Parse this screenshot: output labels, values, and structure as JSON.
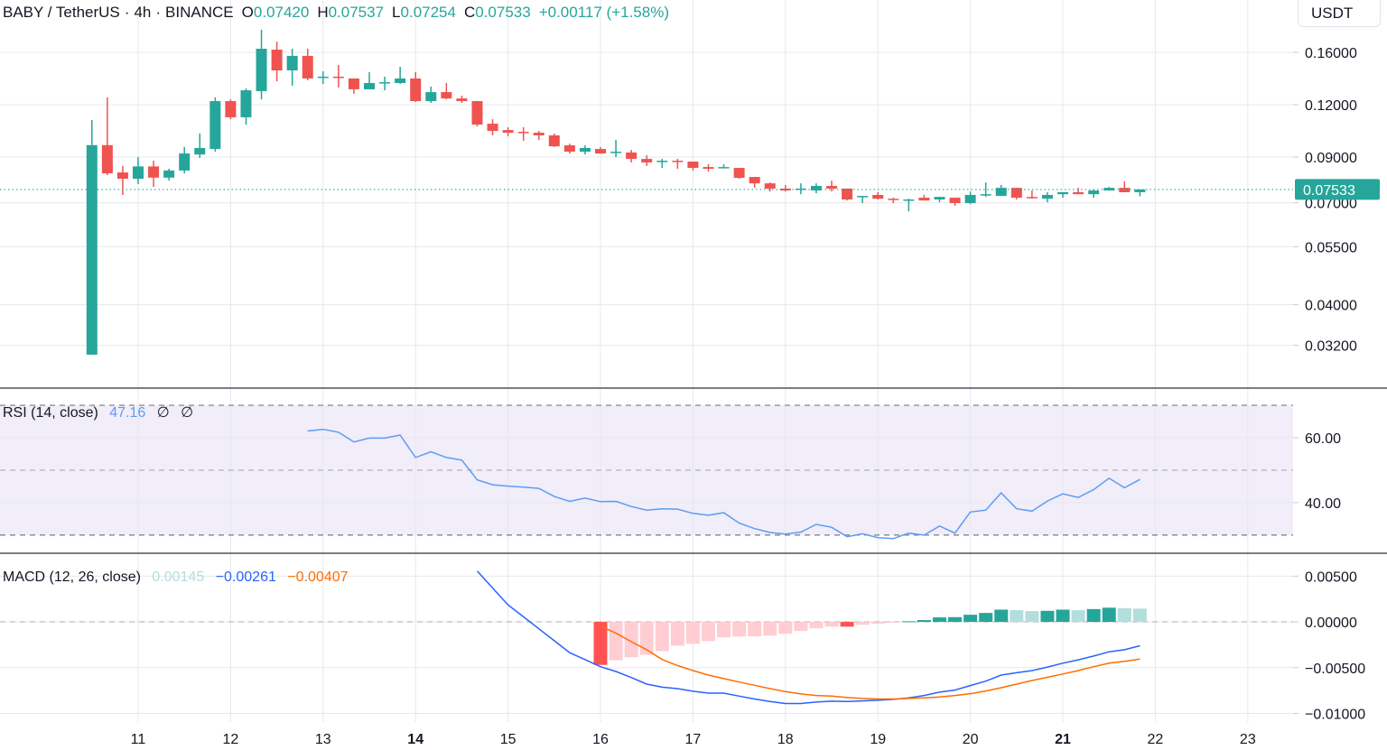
{
  "header": {
    "symbol": "BABY / TetherUS",
    "dot1": "·",
    "interval": "4h",
    "dot2": "·",
    "exchange": "BINANCE",
    "o_label": "O",
    "o": "0.07420",
    "h_label": "H",
    "h": "0.07537",
    "l_label": "L",
    "l": "0.07254",
    "c_label": "C",
    "c": "0.07533",
    "change": "+0.00117 (+1.58%)"
  },
  "currency_button": "USDT",
  "colors": {
    "up": "#26a69a",
    "down": "#ef5350",
    "rsi_line": "#5e9cf2",
    "rsi_band": "#f1edf9",
    "macd_line": "#2962ff",
    "signal_line": "#ff6d00",
    "hist_up_strong": "#26a69a",
    "hist_up_weak": "#b2dfdb",
    "hist_down_strong": "#ff5252",
    "hist_down_weak": "#ffcdd2"
  },
  "time_axis": {
    "ticks": [
      "11",
      "12",
      "13",
      "14",
      "15",
      "16",
      "17",
      "18",
      "19",
      "20",
      "21",
      "22",
      "23"
    ],
    "bold": [
      "14",
      "21"
    ],
    "xlim_days": [
      9.506,
      23.49
    ]
  },
  "chart_data": [
    {
      "type": "candlestick",
      "interval": "4h",
      "first_candle_day": 10.5,
      "y_scale": "log",
      "ylim": [
        0.0253,
        0.2133
      ],
      "y_ticks": [
        "0.16000",
        "0.12000",
        "0.09000",
        "0.07000",
        "0.05500",
        "0.04000",
        "0.03200"
      ],
      "last_price_label": "0.07533",
      "ohlc": [
        [
          0.0304,
          0.1103,
          0.0304,
          0.0961
        ],
        [
          0.0961,
          0.1249,
          0.0815,
          0.0823
        ],
        [
          0.0827,
          0.0857,
          0.0731,
          0.0799
        ],
        [
          0.0799,
          0.09,
          0.0776,
          0.0855
        ],
        [
          0.0855,
          0.0882,
          0.0764,
          0.0804
        ],
        [
          0.0804,
          0.0844,
          0.0791,
          0.0836
        ],
        [
          0.0836,
          0.0951,
          0.0823,
          0.0918
        ],
        [
          0.0913,
          0.1024,
          0.0896,
          0.0946
        ],
        [
          0.0941,
          0.1249,
          0.0927,
          0.1224
        ],
        [
          0.1224,
          0.1236,
          0.1108,
          0.112
        ],
        [
          0.112,
          0.1312,
          0.1076,
          0.1299
        ],
        [
          0.1293,
          0.1811,
          0.1236,
          0.1632
        ],
        [
          0.1624,
          0.1698,
          0.1365,
          0.1449
        ],
        [
          0.1449,
          0.1632,
          0.1332,
          0.1569
        ],
        [
          0.1569,
          0.1632,
          0.1372,
          0.1386
        ],
        [
          0.1393,
          0.1442,
          0.1345,
          0.14
        ],
        [
          0.14,
          0.1493,
          0.1319,
          0.1393
        ],
        [
          0.1386,
          0.1386,
          0.1274,
          0.1306
        ],
        [
          0.1306,
          0.1435,
          0.1306,
          0.1352
        ],
        [
          0.1358,
          0.14,
          0.1299,
          0.1358
        ],
        [
          0.1352,
          0.1478,
          0.1345,
          0.1386
        ],
        [
          0.1386,
          0.1435,
          0.1218,
          0.1224
        ],
        [
          0.1224,
          0.1325,
          0.1212,
          0.1286
        ],
        [
          0.1286,
          0.1352,
          0.1236,
          0.1242
        ],
        [
          0.1242,
          0.1261,
          0.1212,
          0.1224
        ],
        [
          0.1224,
          0.1224,
          0.1065,
          0.1076
        ],
        [
          0.1081,
          0.1108,
          0.1014,
          0.1039
        ],
        [
          0.1044,
          0.106,
          0.1009,
          0.1029
        ],
        [
          0.1034,
          0.106,
          0.0984,
          0.1029
        ],
        [
          0.1029,
          0.1039,
          0.0989,
          0.1014
        ],
        [
          0.1014,
          0.1024,
          0.0951,
          0.0955
        ],
        [
          0.096,
          0.0969,
          0.0918,
          0.0927
        ],
        [
          0.0927,
          0.096,
          0.0913,
          0.0946
        ],
        [
          0.0941,
          0.0951,
          0.0918,
          0.0918
        ],
        [
          0.0923,
          0.0989,
          0.09,
          0.0927
        ],
        [
          0.0923,
          0.0936,
          0.0874,
          0.0891
        ],
        [
          0.0891,
          0.0909,
          0.0857,
          0.0874
        ],
        [
          0.0878,
          0.0891,
          0.0848,
          0.0882
        ],
        [
          0.0882,
          0.0891,
          0.0844,
          0.0878
        ],
        [
          0.0878,
          0.0878,
          0.0836,
          0.0848
        ],
        [
          0.0852,
          0.0865,
          0.0831,
          0.0844
        ],
        [
          0.0848,
          0.0865,
          0.0848,
          0.0852
        ],
        [
          0.0848,
          0.0848,
          0.0799,
          0.0803
        ],
        [
          0.0807,
          0.0807,
          0.076,
          0.0779
        ],
        [
          0.0779,
          0.0783,
          0.0745,
          0.0757
        ],
        [
          0.0757,
          0.0772,
          0.0745,
          0.0749
        ],
        [
          0.0753,
          0.0779,
          0.0734,
          0.0757
        ],
        [
          0.0749,
          0.0779,
          0.0738,
          0.0768
        ],
        [
          0.0768,
          0.0791,
          0.0745,
          0.0757
        ],
        [
          0.0757,
          0.0757,
          0.0709,
          0.0713
        ],
        [
          0.0723,
          0.0727,
          0.0699,
          0.0727
        ],
        [
          0.0731,
          0.0742,
          0.0713,
          0.0716
        ],
        [
          0.0716,
          0.072,
          0.0699,
          0.0713
        ],
        [
          0.0709,
          0.0716,
          0.0668,
          0.0713
        ],
        [
          0.072,
          0.0731,
          0.0709,
          0.0709
        ],
        [
          0.0713,
          0.0723,
          0.0702,
          0.0723
        ],
        [
          0.072,
          0.072,
          0.0688,
          0.0699
        ],
        [
          0.0699,
          0.0745,
          0.0695,
          0.0731
        ],
        [
          0.0734,
          0.0783,
          0.0723,
          0.0734
        ],
        [
          0.0727,
          0.0772,
          0.0727,
          0.076
        ],
        [
          0.076,
          0.076,
          0.0713,
          0.072
        ],
        [
          0.0723,
          0.0749,
          0.0716,
          0.072
        ],
        [
          0.0716,
          0.0742,
          0.0702,
          0.0731
        ],
        [
          0.0734,
          0.0742,
          0.072,
          0.0742
        ],
        [
          0.0742,
          0.076,
          0.0734,
          0.0734
        ],
        [
          0.0734,
          0.0753,
          0.072,
          0.0749
        ],
        [
          0.0749,
          0.0764,
          0.0749,
          0.076
        ],
        [
          0.076,
          0.0787,
          0.0749,
          0.0742
        ],
        [
          0.0742,
          0.07537,
          0.07254,
          0.07533
        ]
      ]
    },
    {
      "type": "line",
      "title": "RSI (14, close)",
      "value": "47.16",
      "extra_symbols": [
        "∅",
        "∅"
      ],
      "ylim": [
        24.4,
        75.3
      ],
      "y_ticks": [
        "60.00",
        "40.00"
      ],
      "bands": [
        70,
        50,
        30
      ],
      "values": [
        null,
        null,
        null,
        null,
        null,
        null,
        null,
        null,
        null,
        null,
        null,
        null,
        null,
        null,
        62.1,
        62.6,
        61.7,
        58.7,
        59.9,
        59.9,
        60.8,
        53.9,
        55.7,
        53.9,
        53.1,
        47.0,
        45.5,
        45.1,
        44.8,
        44.4,
        41.9,
        40.4,
        41.4,
        40.3,
        40.4,
        38.8,
        37.7,
        38.1,
        38.0,
        36.7,
        36.1,
        36.9,
        33.7,
        32.0,
        30.8,
        30.3,
        30.9,
        33.3,
        32.4,
        29.5,
        30.4,
        29.2,
        28.9,
        30.6,
        30.0,
        32.8,
        30.6,
        37.1,
        37.7,
        43.0,
        38.1,
        37.4,
        40.5,
        42.7,
        41.6,
        44.0,
        47.5,
        44.6,
        47.16
      ]
    },
    {
      "type": "bar+line",
      "title": "MACD (12, 26, close)",
      "histogram_value": "0.00145",
      "macd_value": "−0.00261",
      "signal_value": "−0.00407",
      "ylim": [
        -0.01094,
        0.0075
      ],
      "y_ticks": [
        "0.00500",
        "0.00000",
        "−0.00500",
        "−0.01000"
      ],
      "macd": [
        null,
        null,
        null,
        null,
        null,
        null,
        null,
        null,
        null,
        null,
        null,
        null,
        null,
        null,
        null,
        null,
        null,
        null,
        null,
        null,
        null,
        null,
        null,
        null,
        null,
        0.00556,
        0.0037,
        0.00186,
        0.00056,
        -0.00075,
        -0.00206,
        -0.00337,
        -0.00412,
        -0.0049,
        -0.00542,
        -0.00608,
        -0.0068,
        -0.00713,
        -0.00729,
        -0.00758,
        -0.00778,
        -0.00778,
        -0.00811,
        -0.00843,
        -0.0087,
        -0.00892,
        -0.00892,
        -0.00876,
        -0.00866,
        -0.0087,
        -0.00863,
        -0.00856,
        -0.00846,
        -0.0083,
        -0.00804,
        -0.00768,
        -0.00745,
        -0.00696,
        -0.00647,
        -0.00581,
        -0.00556,
        -0.00532,
        -0.00493,
        -0.00451,
        -0.00415,
        -0.00373,
        -0.00327,
        -0.00304,
        -0.00261
      ],
      "signal": [
        null,
        null,
        null,
        null,
        null,
        null,
        null,
        null,
        null,
        null,
        null,
        null,
        null,
        null,
        null,
        null,
        null,
        null,
        null,
        null,
        null,
        null,
        null,
        null,
        null,
        null,
        null,
        null,
        null,
        null,
        null,
        null,
        null,
        -0.00046,
        -0.00124,
        -0.00216,
        -0.00304,
        -0.00412,
        -0.00477,
        -0.00532,
        -0.00581,
        -0.0062,
        -0.00657,
        -0.00693,
        -0.00729,
        -0.00762,
        -0.00787,
        -0.00804,
        -0.00811,
        -0.00827,
        -0.00837,
        -0.00843,
        -0.00843,
        -0.00837,
        -0.0083,
        -0.0082,
        -0.00804,
        -0.00784,
        -0.00755,
        -0.00719,
        -0.0068,
        -0.0064,
        -0.00605,
        -0.00569,
        -0.00532,
        -0.0049,
        -0.00451,
        -0.0043,
        -0.00407
      ],
      "histogram": [
        null,
        null,
        null,
        null,
        null,
        null,
        null,
        null,
        null,
        null,
        null,
        null,
        null,
        null,
        null,
        null,
        null,
        null,
        null,
        null,
        null,
        null,
        null,
        null,
        null,
        null,
        null,
        null,
        null,
        null,
        null,
        null,
        null,
        -0.0047,
        -0.0042,
        -0.00386,
        -0.0036,
        -0.0032,
        -0.0026,
        -0.0024,
        -0.0021,
        -0.0017,
        -0.0016,
        -0.00158,
        -0.0015,
        -0.0013,
        -0.001,
        -0.0007,
        -0.00052,
        -0.00052,
        -0.00032,
        -0.0002,
        -0.0001,
        7e-05,
        0.0002,
        0.00049,
        0.00052,
        0.00078,
        0.00098,
        0.00134,
        0.00128,
        0.00118,
        0.00121,
        0.00134,
        0.00128,
        0.0014,
        0.00155,
        0.0015,
        0.00145
      ]
    }
  ]
}
